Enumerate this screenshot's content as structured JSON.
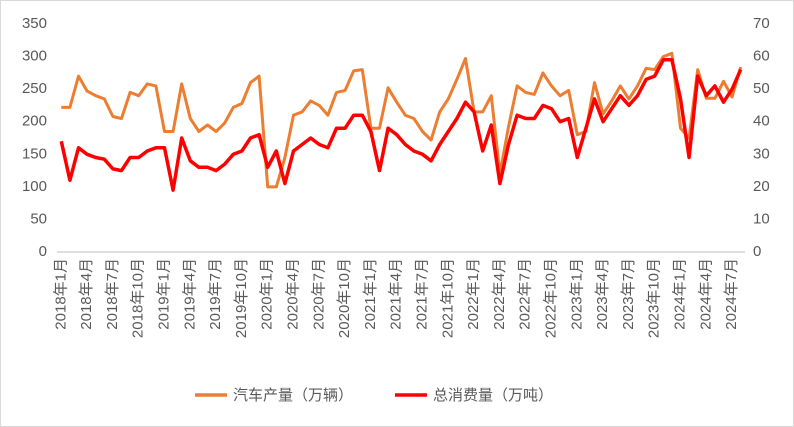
{
  "chart_data": {
    "type": "line",
    "categories": [
      "2018年1月",
      null,
      null,
      "2018年4月",
      null,
      null,
      "2018年7月",
      null,
      null,
      "2018年10月",
      null,
      null,
      "2019年1月",
      null,
      null,
      "2019年4月",
      null,
      null,
      "2019年7月",
      null,
      null,
      "2019年10月",
      null,
      null,
      "2020年1月",
      null,
      null,
      "2020年4月",
      null,
      null,
      "2020年7月",
      null,
      null,
      "2020年10月",
      null,
      null,
      "2021年1月",
      null,
      null,
      "2021年4月",
      null,
      null,
      "2021年7月",
      null,
      null,
      "2021年10月",
      null,
      null,
      "2022年1月",
      null,
      null,
      "2022年4月",
      null,
      null,
      "2022年7月",
      null,
      null,
      "2022年10月",
      null,
      null,
      "2023年1月",
      null,
      null,
      "2023年4月",
      null,
      null,
      "2023年7月",
      null,
      null,
      "2023年10月",
      null,
      null,
      "2024年1月",
      null,
      null,
      "2024年4月",
      null,
      null,
      "2024年7月",
      null
    ],
    "series": [
      {
        "name": "汽车产量（万辆）",
        "color": "#ed7d31",
        "axis": "y",
        "values": [
          222,
          222,
          270,
          247,
          240,
          235,
          208,
          205,
          245,
          240,
          258,
          255,
          185,
          185,
          258,
          205,
          185,
          195,
          185,
          198,
          222,
          228,
          260,
          270,
          100,
          100,
          145,
          210,
          215,
          232,
          225,
          210,
          245,
          248,
          278,
          280,
          190,
          190,
          252,
          230,
          210,
          205,
          185,
          172,
          215,
          235,
          265,
          297,
          215,
          215,
          240,
          120,
          192,
          255,
          245,
          242,
          275,
          255,
          240,
          248,
          180,
          185,
          260,
          212,
          232,
          255,
          235,
          255,
          282,
          280,
          300,
          305,
          190,
          175,
          280,
          236,
          236,
          262,
          238,
          284
        ]
      },
      {
        "name": "总消费量（万吨）",
        "color": "#ff0000",
        "axis": "y2",
        "values": [
          34,
          22,
          32,
          30,
          29,
          28.5,
          25.5,
          25,
          29,
          29,
          31,
          32,
          32,
          19,
          35,
          28,
          26,
          26,
          25,
          27,
          30,
          31,
          35,
          36,
          26,
          31,
          21,
          31,
          33,
          35,
          33,
          32,
          38,
          38,
          42,
          42,
          37,
          25,
          38,
          36,
          33,
          31,
          30,
          28,
          33,
          37,
          41,
          46,
          43,
          31,
          39,
          21,
          33,
          42,
          41,
          41,
          45,
          44,
          40,
          41,
          29,
          38,
          47,
          40,
          44,
          48,
          45,
          48,
          53,
          54,
          59,
          59,
          47,
          29,
          54,
          48,
          51,
          46,
          50,
          56
        ]
      }
    ],
    "ylim": [
      0,
      350
    ],
    "yticks": [
      0,
      50,
      100,
      150,
      200,
      250,
      300,
      350
    ],
    "y2lim": [
      0,
      70
    ],
    "y2ticks": [
      0,
      10,
      20,
      30,
      40,
      50,
      60,
      70
    ],
    "grid": false,
    "legend": "bottom"
  }
}
